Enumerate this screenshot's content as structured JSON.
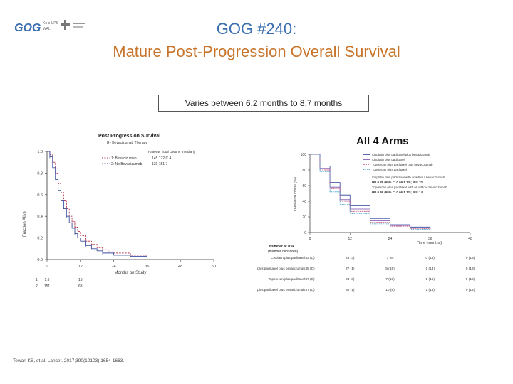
{
  "header": {
    "logo_text": "GOG",
    "logo_sub1": "Ko-c UPS-",
    "logo_sub2": "WAL",
    "title_line1": "GOG #240:",
    "title_line2": "Mature Post-Progression Overall Survival"
  },
  "callout": "Varies between 6.2 months to 8.7 months",
  "citation": "Tewari KS, et al. Lancet. 2017;390(10103):1654-1663.",
  "colors": {
    "title1": "#3b6fb0",
    "title2": "#c8742a",
    "chemo": "#3a4fa0",
    "bev": "#b3324a"
  },
  "chart_data": [
    {
      "type": "line",
      "title": "Post Progression Survival",
      "subtitle": "By Bevacizumab Therapy",
      "xlabel": "Months on Study",
      "ylabel": "Fraction Alive",
      "xlim": [
        0,
        60
      ],
      "ylim": [
        0,
        1.0
      ],
      "x_ticks": [
        "0",
        "12",
        "24",
        "36",
        "48",
        "60"
      ],
      "y_ticks": [
        "0.0",
        "0.2",
        "0.4",
        "0.6",
        "0.8",
        "1.0"
      ],
      "legend_header": "Patients   Total   Deaths (median)",
      "series": [
        {
          "name": "1: Bevacizumab",
          "legend_values": "145   172   C 4",
          "x": [
            0,
            1,
            2,
            3,
            4,
            5,
            6,
            7,
            8,
            9,
            10,
            11,
            12,
            14,
            16,
            18,
            20,
            22,
            24,
            30,
            36
          ],
          "y": [
            1.0,
            0.97,
            0.9,
            0.8,
            0.7,
            0.62,
            0.55,
            0.47,
            0.4,
            0.35,
            0.3,
            0.26,
            0.22,
            0.17,
            0.14,
            0.11,
            0.09,
            0.07,
            0.06,
            0.04,
            0.04
          ]
        },
        {
          "name": "2: No Bevacizumab",
          "legend_values": "139   151   7",
          "x": [
            0,
            1,
            2,
            3,
            4,
            5,
            6,
            7,
            8,
            9,
            10,
            11,
            12,
            14,
            16,
            18,
            20,
            24,
            30,
            36
          ],
          "y": [
            1.0,
            0.95,
            0.85,
            0.74,
            0.64,
            0.55,
            0.47,
            0.4,
            0.34,
            0.29,
            0.24,
            0.2,
            0.17,
            0.13,
            0.1,
            0.08,
            0.06,
            0.04,
            0.03,
            0.02
          ]
        }
      ],
      "risk_table": [
        {
          "row": "1",
          "values": [
            "1.6",
            "16",
            "",
            "",
            "",
            ""
          ]
        },
        {
          "row": "2",
          "values": [
            "151",
            "63",
            "",
            "",
            "",
            ""
          ]
        }
      ]
    },
    {
      "type": "line",
      "title": "All 4 Arms",
      "xlabel": "Time (months)",
      "ylabel": "Overall survival (%)",
      "xlim": [
        0,
        48
      ],
      "ylim": [
        0,
        100
      ],
      "x_ticks": [
        "0",
        "12",
        "24",
        "36",
        "48"
      ],
      "y_ticks": [
        "0",
        "20",
        "40",
        "60",
        "80",
        "100"
      ],
      "legend": [
        "Cisplatin plus paclitaxel plus bevacizumab",
        "Cisplatin plus paclitaxel",
        "Topotecan plus paclitaxel plus bevacizumab",
        "Topotecan plus paclitaxel",
        "Cisplatin plus paclitaxel with or without bevacizumab",
        "HR 0.88 (95% CI 0.69-1.13); P = .32",
        "Topotecan plus paclitaxel with or without bevacizumab",
        "HR 0.86 (95% CI 0.66-1.12); P = .14"
      ],
      "series": [
        {
          "name": "Cisplatin plus paclitaxel plus bevacizumab",
          "x": [
            0,
            3,
            6,
            9,
            12,
            18,
            24,
            30,
            36
          ],
          "y": [
            100,
            85,
            64,
            48,
            35,
            18,
            10,
            7,
            5
          ]
        },
        {
          "name": "Cisplatin plus paclitaxel",
          "x": [
            0,
            3,
            6,
            9,
            12,
            18,
            24,
            30,
            36
          ],
          "y": [
            100,
            82,
            58,
            42,
            30,
            15,
            9,
            6,
            4
          ]
        },
        {
          "name": "Topotecan plus paclitaxel plus bevacizumab",
          "x": [
            0,
            3,
            6,
            9,
            12,
            18,
            24,
            30,
            36
          ],
          "y": [
            100,
            80,
            56,
            40,
            27,
            13,
            8,
            5,
            3
          ]
        },
        {
          "name": "Topotecan plus paclitaxel",
          "x": [
            0,
            3,
            6,
            9,
            12,
            18,
            24,
            30,
            36
          ],
          "y": [
            100,
            78,
            52,
            36,
            24,
            11,
            6,
            4,
            3
          ]
        }
      ],
      "risk_header": [
        "Number at risk",
        "(number censored)"
      ],
      "risk_table": [
        {
          "label": "Cisplatin plus paclitaxel",
          "values": [
            "43 (C)",
            "28 (3)",
            "7 (6)",
            "0 (13)",
            "0 (13)"
          ]
        },
        {
          "label": "Cisplatin plus paclitaxel plus bevacizumab",
          "values": [
            "35 (C)",
            "27 (1)",
            "5 (15)",
            "1 (14)",
            "0 (13)"
          ]
        },
        {
          "label": "Topotecan plus paclitaxel",
          "values": [
            "37 (C)",
            "24 (3)",
            "7 (13)",
            "1 (15)",
            "0 (16)"
          ]
        },
        {
          "label": "Topotecan plus paclitaxel plus bevacizumab",
          "values": [
            "37 (C)",
            "30 (1)",
            "10 (8)",
            "1 (13)",
            "0 (14)"
          ]
        }
      ]
    }
  ]
}
